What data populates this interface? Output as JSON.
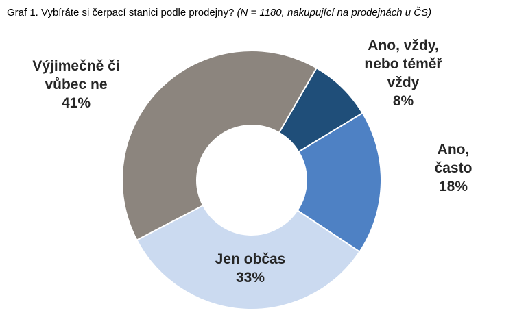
{
  "chart_data": {
    "type": "pie",
    "subtype": "donut",
    "title": "Graf 1. Vybíráte si čerpací stanici podle prodejny?",
    "note": "(N = 1180, nakupující na prodejnách u ČS)",
    "categories": [
      "Ano, vždy, nebo téměř vždy",
      "Ano, často",
      "Jen občas",
      "Výjimečně či vůbec ne"
    ],
    "values": [
      8,
      18,
      33,
      41
    ],
    "unit": "%",
    "colors": [
      "#1F4E79",
      "#4E81C4",
      "#CBDAF0",
      "#8C857E"
    ],
    "start_angle_deg": 30,
    "direction": "clockwise",
    "inner_radius_ratio": 0.423,
    "legend": "none",
    "labels": [
      {
        "display": "Ano, vždy,\nnebo téměř\nvždy\n8%"
      },
      {
        "display": "Ano, často\n18%"
      },
      {
        "display": "Jen občas\n33%"
      },
      {
        "display": "Výjimečně či\nvůbec ne\n41%"
      }
    ]
  }
}
